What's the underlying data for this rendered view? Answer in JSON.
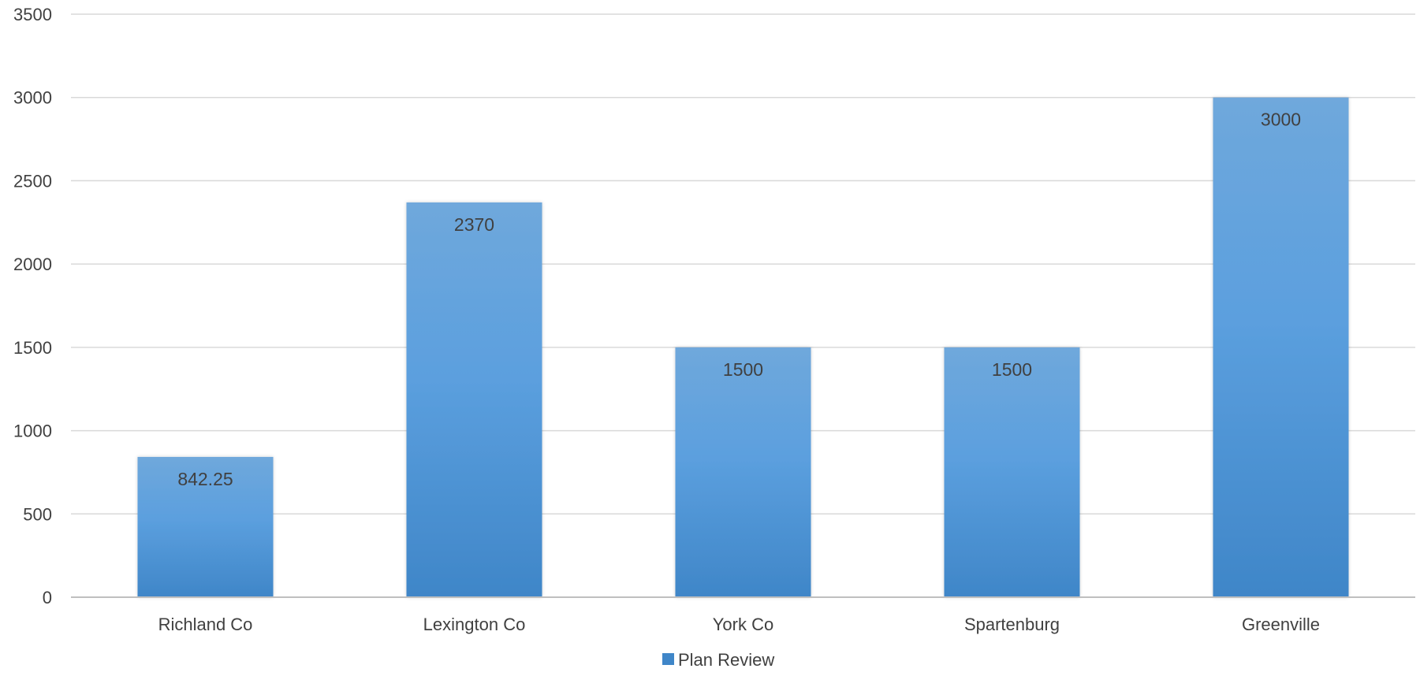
{
  "chart_data": {
    "type": "bar",
    "title": "",
    "xlabel": "",
    "ylabel": "",
    "ylim": [
      0,
      3500
    ],
    "yticks": [
      0,
      500,
      1000,
      1500,
      2000,
      2500,
      3000,
      3500
    ],
    "ytick_labels": [
      "0",
      "500",
      "1000",
      "1500",
      "2000",
      "2500",
      "3000",
      "3500"
    ],
    "categories": [
      "Richland Co",
      "Lexington Co",
      "York Co",
      "Spartenburg",
      "Greenville"
    ],
    "series": [
      {
        "name": "Plan Review",
        "values": [
          842.25,
          2370,
          1500,
          1500,
          3000
        ],
        "value_labels": [
          "842.25",
          "2370",
          "1500",
          "1500",
          "3000"
        ],
        "color_top": "#6fa8dc",
        "color_bottom": "#3f86c8"
      }
    ],
    "grid": true,
    "gridline_color": "#d9d9d9",
    "axis_color": "#bfbfbf",
    "legend": "bottom-center",
    "data_labels": "inside-end"
  }
}
